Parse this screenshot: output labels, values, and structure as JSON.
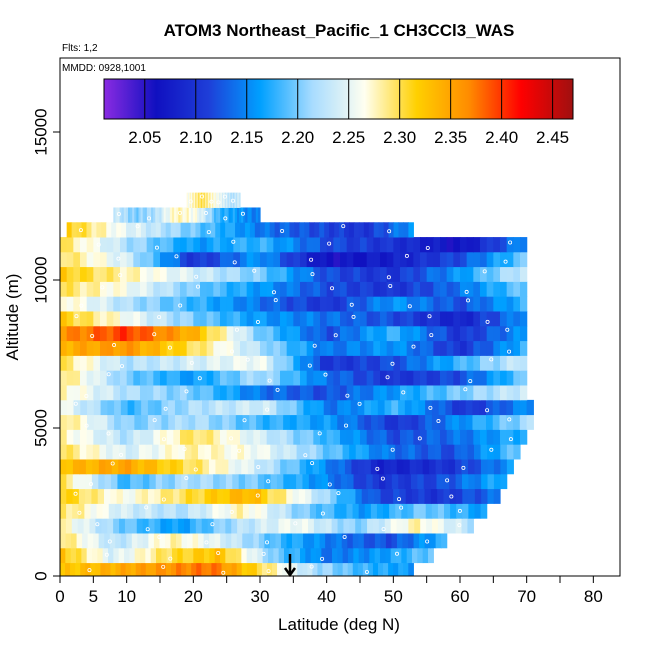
{
  "chart_data": {
    "type": "heatmap",
    "title": "ATOM3 Northeast_Pacific_1 CH3CCl3_WAS",
    "flights_label": "Flts: 1,2",
    "dates_label": "MMDD: 0928,1001",
    "xlabel": "Latitude (deg N)",
    "ylabel": "Altitude (m)",
    "xlim": [
      0,
      84
    ],
    "ylim": [
      0,
      17500
    ],
    "x_ticks": [
      0,
      5,
      10,
      20,
      30,
      40,
      50,
      60,
      70,
      80
    ],
    "x_minor_ticks": [
      0,
      5,
      10,
      15,
      20,
      25,
      30,
      35,
      40,
      45,
      50,
      55,
      60,
      65,
      70,
      75,
      80,
      85
    ],
    "y_ticks": [
      0,
      5000,
      10000,
      15000
    ],
    "colorbar": {
      "min": 2.01,
      "max": 2.47,
      "ticks": [
        2.05,
        2.1,
        2.15,
        2.2,
        2.25,
        2.3,
        2.35,
        2.4,
        2.45
      ],
      "tick_labels": [
        "2.05",
        "2.10",
        "2.15",
        "2.20",
        "2.25",
        "2.30",
        "2.35",
        "2.40",
        "2.45"
      ],
      "colors": [
        "#8a2be2",
        "#1010c0",
        "#1e3ed8",
        "#00a0ff",
        "#a8dcff",
        "#fffff0",
        "#ffd000",
        "#ff8c00",
        "#ff0000",
        "#a01010"
      ]
    },
    "marker": {
      "latitude": 34.5,
      "altitude": 0,
      "symbol": "arrow-down"
    },
    "bands": [
      {
        "alt": 200,
        "lat": [
          0,
          53
        ],
        "values": [
          2.32,
          2.34,
          2.36,
          2.38,
          2.3,
          2.22,
          2.18,
          2.16
        ]
      },
      {
        "alt": 700,
        "lat": [
          0,
          56
        ],
        "values": [
          2.33,
          2.24,
          2.3,
          2.33,
          2.2,
          2.14,
          2.16,
          2.2
        ]
      },
      {
        "alt": 1200,
        "lat": [
          0,
          58
        ],
        "values": [
          2.3,
          2.22,
          2.28,
          2.24,
          2.18,
          2.14,
          2.12,
          2.18
        ]
      },
      {
        "alt": 1700,
        "lat": [
          0,
          62
        ],
        "values": [
          2.28,
          2.2,
          2.16,
          2.22,
          2.26,
          2.2,
          2.28,
          2.22
        ]
      },
      {
        "alt": 2200,
        "lat": [
          0,
          64
        ],
        "values": [
          2.3,
          2.24,
          2.22,
          2.28,
          2.2,
          2.16,
          2.2,
          2.16
        ]
      },
      {
        "alt": 2700,
        "lat": [
          0,
          66
        ],
        "values": [
          2.32,
          2.26,
          2.3,
          2.34,
          2.24,
          2.12,
          2.1,
          2.14
        ]
      },
      {
        "alt": 3200,
        "lat": [
          0,
          67
        ],
        "values": [
          2.3,
          2.18,
          2.22,
          2.2,
          2.16,
          2.1,
          2.12,
          2.18
        ]
      },
      {
        "alt": 3700,
        "lat": [
          0,
          68
        ],
        "values": [
          2.33,
          2.35,
          2.3,
          2.24,
          2.16,
          2.08,
          2.1,
          2.16
        ]
      },
      {
        "alt": 4200,
        "lat": [
          0,
          69
        ],
        "values": [
          2.3,
          2.24,
          2.28,
          2.26,
          2.2,
          2.14,
          2.12,
          2.2
        ]
      },
      {
        "alt": 4700,
        "lat": [
          0,
          70
        ],
        "values": [
          2.28,
          2.22,
          2.3,
          2.24,
          2.18,
          2.12,
          2.14,
          2.18
        ]
      },
      {
        "alt": 5200,
        "lat": [
          0,
          71
        ],
        "values": [
          2.3,
          2.2,
          2.22,
          2.18,
          2.16,
          2.1,
          2.16,
          2.22
        ]
      },
      {
        "alt": 5700,
        "lat": [
          0,
          71
        ],
        "values": [
          2.26,
          2.18,
          2.22,
          2.24,
          2.14,
          2.18,
          2.1,
          2.16
        ]
      },
      {
        "alt": 6200,
        "lat": [
          0,
          70
        ],
        "values": [
          2.28,
          2.22,
          2.2,
          2.14,
          2.12,
          2.16,
          2.2,
          2.24
        ]
      },
      {
        "alt": 6700,
        "lat": [
          0,
          70
        ],
        "values": [
          2.3,
          2.2,
          2.16,
          2.22,
          2.14,
          2.1,
          2.12,
          2.2
        ]
      },
      {
        "alt": 7200,
        "lat": [
          0,
          70
        ],
        "values": [
          2.3,
          2.22,
          2.24,
          2.26,
          2.1,
          2.12,
          2.18,
          2.24
        ]
      },
      {
        "alt": 7700,
        "lat": [
          0,
          70
        ],
        "values": [
          2.34,
          2.36,
          2.3,
          2.22,
          2.14,
          2.16,
          2.1,
          2.18
        ]
      },
      {
        "alt": 8200,
        "lat": [
          0,
          70
        ],
        "values": [
          2.36,
          2.4,
          2.34,
          2.2,
          2.12,
          2.18,
          2.1,
          2.16
        ]
      },
      {
        "alt": 8700,
        "lat": [
          0,
          70
        ],
        "values": [
          2.32,
          2.26,
          2.2,
          2.16,
          2.14,
          2.12,
          2.08,
          2.16
        ]
      },
      {
        "alt": 9200,
        "lat": [
          0,
          70
        ],
        "values": [
          2.28,
          2.22,
          2.18,
          2.14,
          2.1,
          2.16,
          2.12,
          2.18
        ]
      },
      {
        "alt": 9700,
        "lat": [
          0,
          70
        ],
        "values": [
          2.3,
          2.26,
          2.2,
          2.16,
          2.12,
          2.1,
          2.14,
          2.2
        ]
      },
      {
        "alt": 10200,
        "lat": [
          0,
          70
        ],
        "values": [
          2.32,
          2.28,
          2.24,
          2.2,
          2.12,
          2.1,
          2.16,
          2.24
        ]
      },
      {
        "alt": 10700,
        "lat": [
          0,
          70
        ],
        "values": [
          2.3,
          2.24,
          2.1,
          2.16,
          2.06,
          2.08,
          2.12,
          2.2
        ]
      },
      {
        "alt": 11200,
        "lat": [
          0,
          70
        ],
        "values": [
          2.3,
          2.22,
          2.16,
          2.18,
          2.12,
          2.1,
          2.06,
          2.16
        ]
      },
      {
        "alt": 11700,
        "lat": [
          1,
          53
        ],
        "values": [
          2.32,
          2.26,
          2.22,
          2.18,
          2.14,
          2.12,
          2.1,
          2.16
        ]
      },
      {
        "alt": 12200,
        "lat": [
          8,
          30
        ],
        "values": [
          2.24,
          2.2,
          2.22,
          2.28,
          2.26,
          2.18,
          2.16,
          2.14
        ]
      },
      {
        "alt": 12700,
        "lat": [
          19,
          27
        ],
        "values": [
          2.26,
          2.28,
          2.3,
          2.28,
          2.26,
          2.24,
          2.22,
          2.24
        ]
      }
    ]
  }
}
